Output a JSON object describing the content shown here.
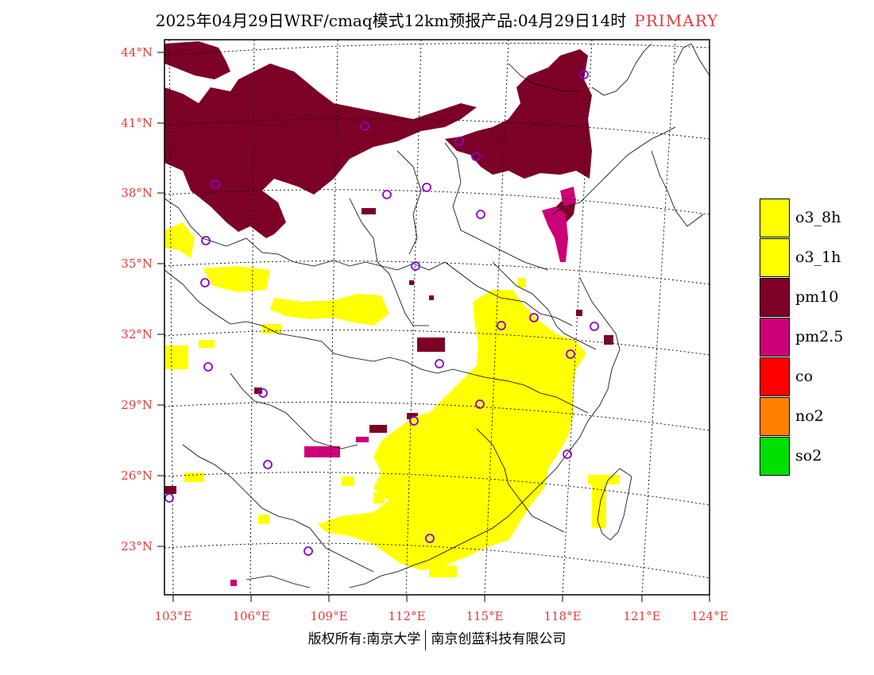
{
  "header": {
    "title": "2025年04月29日WRF/cmaq模式12km预报产品:04月29日14时",
    "tag": "PRIMARY"
  },
  "colors": {
    "pm10": "#7d0027",
    "pm25": "#cc0077",
    "o3": "#ffff00",
    "co": "#ff0000",
    "no2": "#ff8000",
    "so2": "#00e000",
    "axis_labels": "#e23c3c"
  },
  "latitude_labels": [
    "44°N",
    "41°N",
    "38°N",
    "35°N",
    "32°N",
    "29°N",
    "26°N",
    "23°N"
  ],
  "longitude_labels": [
    "103°E",
    "106°E",
    "109°E",
    "112°E",
    "115°E",
    "118°E",
    "121°E",
    "124°E"
  ],
  "legend": {
    "items": [
      {
        "label": "o3_8h",
        "color": "#ffff00"
      },
      {
        "label": "o3_1h",
        "color": "#ffff00"
      },
      {
        "label": "pm10",
        "color": "#7d0027"
      },
      {
        "label": "pm2.5",
        "color": "#cc0077"
      },
      {
        "label": "co",
        "color": "#ff0000"
      },
      {
        "label": "no2",
        "color": "#ff8000"
      },
      {
        "label": "so2",
        "color": "#00e000"
      }
    ]
  },
  "footer": {
    "left": "版权所有:南京大学",
    "right": "南京创蓝科技有限公司"
  },
  "station_marker": "circle-marker-icon"
}
